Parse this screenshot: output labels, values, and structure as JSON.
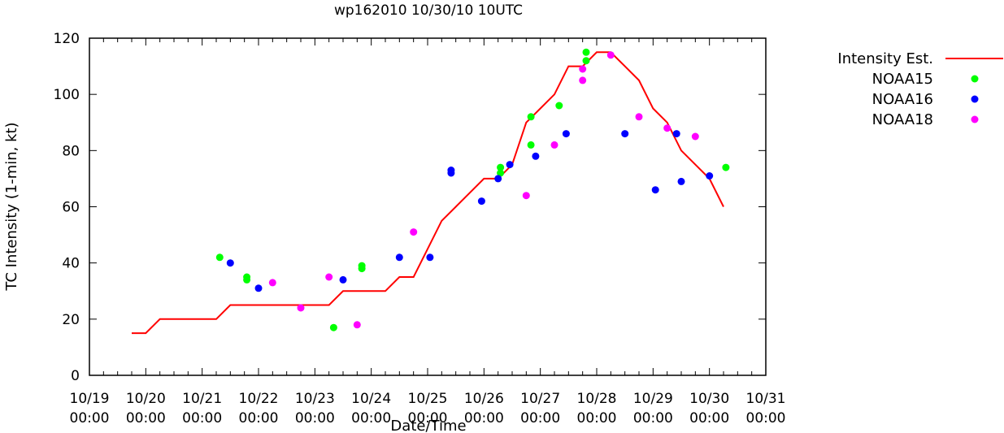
{
  "chart_data": {
    "type": "line+scatter",
    "title": "wp162010 10/30/10 10UTC",
    "xlabel": "Date/Time",
    "ylabel": "TC Intensity (1-min, kt)",
    "xlim": [
      "2010-10-19 00:00",
      "2010-10-31 00:00"
    ],
    "ylim": [
      0,
      120
    ],
    "yticks": [
      0,
      20,
      40,
      60,
      80,
      100,
      120
    ],
    "xticks": [
      {
        "line1": "10/19",
        "line2": "00:00"
      },
      {
        "line1": "10/20",
        "line2": "00:00"
      },
      {
        "line1": "10/21",
        "line2": "00:00"
      },
      {
        "line1": "10/22",
        "line2": "00:00"
      },
      {
        "line1": "10/23",
        "line2": "00:00"
      },
      {
        "line1": "10/24",
        "line2": "00:00"
      },
      {
        "line1": "10/25",
        "line2": "00:00"
      },
      {
        "line1": "10/26",
        "line2": "00:00"
      },
      {
        "line1": "10/27",
        "line2": "00:00"
      },
      {
        "line1": "10/28",
        "line2": "00:00"
      },
      {
        "line1": "10/29",
        "line2": "00:00"
      },
      {
        "line1": "10/30",
        "line2": "00:00"
      },
      {
        "line1": "10/31",
        "line2": "00:00"
      }
    ],
    "grid": false,
    "legend_position": "outside-right-top",
    "series": [
      {
        "name": "Intensity Est.",
        "type": "line",
        "color": "#ff0000",
        "points": [
          [
            "2010-10-19 18:00",
            15
          ],
          [
            "2010-10-20 00:00",
            15
          ],
          [
            "2010-10-20 06:00",
            20
          ],
          [
            "2010-10-20 12:00",
            20
          ],
          [
            "2010-10-20 18:00",
            20
          ],
          [
            "2010-10-21 00:00",
            20
          ],
          [
            "2010-10-21 06:00",
            20
          ],
          [
            "2010-10-21 12:00",
            25
          ],
          [
            "2010-10-21 18:00",
            25
          ],
          [
            "2010-10-22 00:00",
            25
          ],
          [
            "2010-10-22 06:00",
            25
          ],
          [
            "2010-10-22 12:00",
            25
          ],
          [
            "2010-10-22 18:00",
            25
          ],
          [
            "2010-10-23 00:00",
            25
          ],
          [
            "2010-10-23 06:00",
            25
          ],
          [
            "2010-10-23 12:00",
            30
          ],
          [
            "2010-10-23 18:00",
            30
          ],
          [
            "2010-10-24 00:00",
            30
          ],
          [
            "2010-10-24 06:00",
            30
          ],
          [
            "2010-10-24 12:00",
            35
          ],
          [
            "2010-10-24 18:00",
            35
          ],
          [
            "2010-10-25 00:00",
            45
          ],
          [
            "2010-10-25 06:00",
            55
          ],
          [
            "2010-10-25 12:00",
            60
          ],
          [
            "2010-10-25 18:00",
            65
          ],
          [
            "2010-10-26 00:00",
            70
          ],
          [
            "2010-10-26 06:00",
            70
          ],
          [
            "2010-10-26 12:00",
            75
          ],
          [
            "2010-10-26 18:00",
            90
          ],
          [
            "2010-10-27 00:00",
            95
          ],
          [
            "2010-10-27 06:00",
            100
          ],
          [
            "2010-10-27 12:00",
            110
          ],
          [
            "2010-10-27 18:00",
            110
          ],
          [
            "2010-10-28 00:00",
            115
          ],
          [
            "2010-10-28 06:00",
            115
          ],
          [
            "2010-10-28 12:00",
            110
          ],
          [
            "2010-10-28 18:00",
            105
          ],
          [
            "2010-10-29 00:00",
            95
          ],
          [
            "2010-10-29 06:00",
            90
          ],
          [
            "2010-10-29 12:00",
            80
          ],
          [
            "2010-10-29 18:00",
            75
          ],
          [
            "2010-10-30 00:00",
            70
          ],
          [
            "2010-10-30 06:00",
            60
          ]
        ]
      },
      {
        "name": "NOAA15",
        "type": "scatter",
        "color": "#00ff00",
        "points": [
          [
            "2010-10-21 07:30",
            42
          ],
          [
            "2010-10-21 19:00",
            35
          ],
          [
            "2010-10-21 19:00",
            34
          ],
          [
            "2010-10-23 08:00",
            17
          ],
          [
            "2010-10-23 20:00",
            39
          ],
          [
            "2010-10-23 20:00",
            38
          ],
          [
            "2010-10-26 07:00",
            74
          ],
          [
            "2010-10-26 07:00",
            72
          ],
          [
            "2010-10-26 20:00",
            92
          ],
          [
            "2010-10-26 20:00",
            82
          ],
          [
            "2010-10-27 08:00",
            96
          ],
          [
            "2010-10-27 19:30",
            115
          ],
          [
            "2010-10-27 19:30",
            112
          ],
          [
            "2010-10-30 07:00",
            74
          ]
        ]
      },
      {
        "name": "NOAA16",
        "type": "scatter",
        "color": "#0000ff",
        "points": [
          [
            "2010-10-21 12:00",
            40
          ],
          [
            "2010-10-22 00:00",
            31
          ],
          [
            "2010-10-23 12:00",
            34
          ],
          [
            "2010-10-24 12:00",
            42
          ],
          [
            "2010-10-25 01:00",
            42
          ],
          [
            "2010-10-25 10:00",
            73
          ],
          [
            "2010-10-25 10:00",
            72
          ],
          [
            "2010-10-25 23:00",
            62
          ],
          [
            "2010-10-26 06:00",
            70
          ],
          [
            "2010-10-26 11:00",
            75
          ],
          [
            "2010-10-26 22:00",
            78
          ],
          [
            "2010-10-27 11:00",
            86
          ],
          [
            "2010-10-28 12:00",
            86
          ],
          [
            "2010-10-29 01:00",
            66
          ],
          [
            "2010-10-29 10:00",
            86
          ],
          [
            "2010-10-29 12:00",
            69
          ],
          [
            "2010-10-30 00:00",
            71
          ]
        ]
      },
      {
        "name": "NOAA18",
        "type": "scatter",
        "color": "#ff00ff",
        "points": [
          [
            "2010-10-22 06:00",
            33
          ],
          [
            "2010-10-22 18:00",
            24
          ],
          [
            "2010-10-23 06:00",
            35
          ],
          [
            "2010-10-23 18:00",
            18
          ],
          [
            "2010-10-24 18:00",
            51
          ],
          [
            "2010-10-26 18:00",
            64
          ],
          [
            "2010-10-27 06:00",
            82
          ],
          [
            "2010-10-27 18:00",
            109
          ],
          [
            "2010-10-27 18:00",
            105
          ],
          [
            "2010-10-28 06:00",
            114
          ],
          [
            "2010-10-28 18:00",
            92
          ],
          [
            "2010-10-29 06:00",
            88
          ],
          [
            "2010-10-29 18:00",
            85
          ]
        ]
      }
    ]
  }
}
